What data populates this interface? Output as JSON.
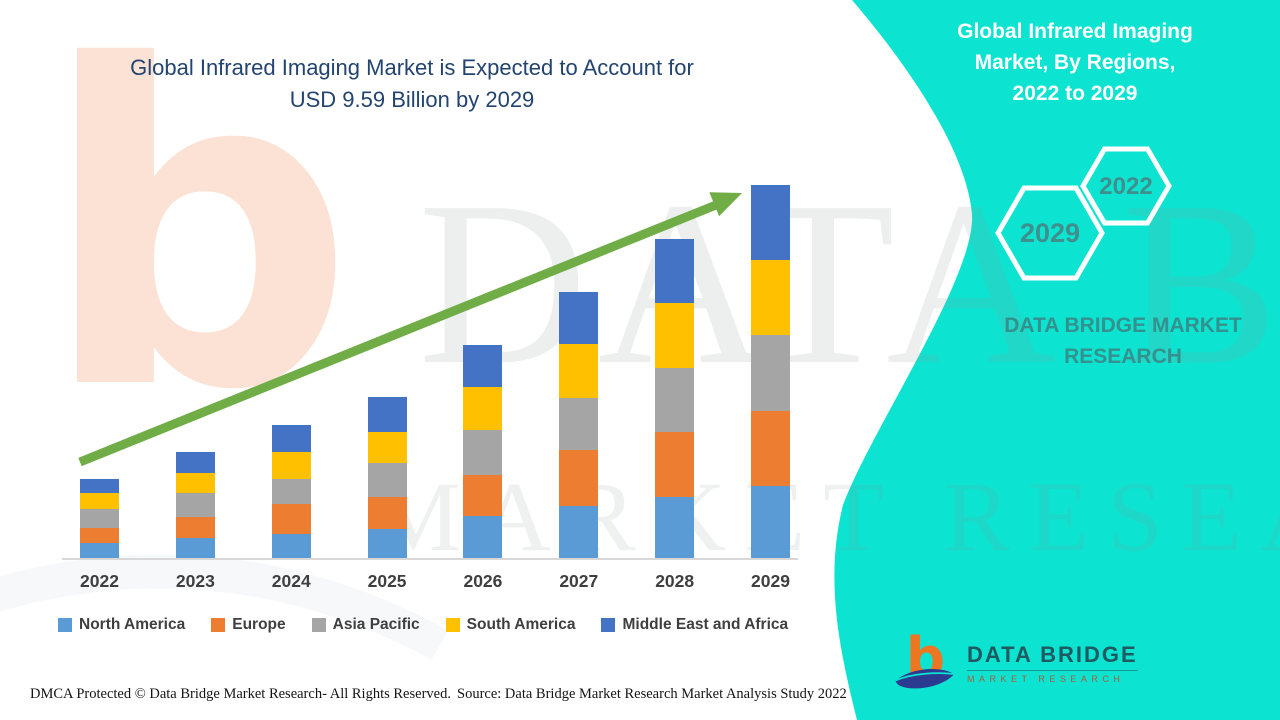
{
  "title": {
    "line1": "Global Infrared Imaging Market is Expected to Account for",
    "line2": "USD 9.59 Billion by 2029"
  },
  "chart_data": {
    "type": "bar",
    "stacked": true,
    "title": "Global Infrared Imaging Market, By Regions, 2022 to 2029",
    "xlabel": "",
    "ylabel": "",
    "unit": "USD Billion (estimated from bar heights; 2029 total = 9.59 stated)",
    "ylim": [
      0,
      10
    ],
    "grid": false,
    "legend_position": "bottom",
    "categories": [
      "2022",
      "2023",
      "2024",
      "2025",
      "2026",
      "2027",
      "2028",
      "2029"
    ],
    "series": [
      {
        "name": "North America",
        "color": "#5B9BD5",
        "values": [
          0.39,
          0.51,
          0.62,
          0.75,
          1.08,
          1.34,
          1.57,
          1.85
        ]
      },
      {
        "name": "Europe",
        "color": "#ED7D31",
        "values": [
          0.39,
          0.54,
          0.77,
          0.82,
          1.05,
          1.44,
          1.67,
          1.93
        ]
      },
      {
        "name": "Asia Pacific",
        "color": "#A5A5A5",
        "values": [
          0.49,
          0.62,
          0.64,
          0.87,
          1.16,
          1.34,
          1.65,
          1.95
        ]
      },
      {
        "name": "South America",
        "color": "#FFC000",
        "values": [
          0.41,
          0.51,
          0.69,
          0.8,
          1.11,
          1.39,
          1.67,
          1.93
        ]
      },
      {
        "name": "Middle East and Africa",
        "color": "#4472C4",
        "values": [
          0.36,
          0.54,
          0.69,
          0.9,
          1.08,
          1.34,
          1.65,
          1.93
        ]
      }
    ],
    "totals_estimated": [
      2.04,
      2.72,
      3.41,
      4.14,
      5.48,
      6.85,
      8.21,
      9.59
    ],
    "annotations": {
      "trend_arrow": "upward growth arrow across bars",
      "arrow_color": "#70AD47"
    }
  },
  "right_panel": {
    "title_lines": [
      "Global Infrared Imaging",
      "Market, By Regions,",
      "2022 to 2029"
    ],
    "hexagon_back_label": "2029",
    "hexagon_front_label": "2022",
    "brand_text": "DATA BRIDGE MARKET RESEARCH",
    "background_color": "#0DE3D1",
    "text_color": "#FFFFFF"
  },
  "watermark": {
    "logo_glyph": "b",
    "line1": "DATA BRIDGE",
    "line2": "MARKET RESEARCH"
  },
  "footer": {
    "dmca": "DMCA Protected © Data Bridge Market Research- All Rights Reserved.",
    "source": "Source: Data Bridge Market Research Market Analysis Study 2022",
    "logo_name": "DATA BRIDGE",
    "logo_sub": "MARKET RESEARCH"
  },
  "colors": {
    "teal_background": "#0DE3D1",
    "title_navy": "#234470",
    "arrow_green": "#70AD47",
    "brand_note_teal": "#35918d",
    "axis_label_gray": "#3f3f3f",
    "footer_logo_orange": "#ED7623",
    "footer_logo_navy": "#2B3B8F"
  }
}
